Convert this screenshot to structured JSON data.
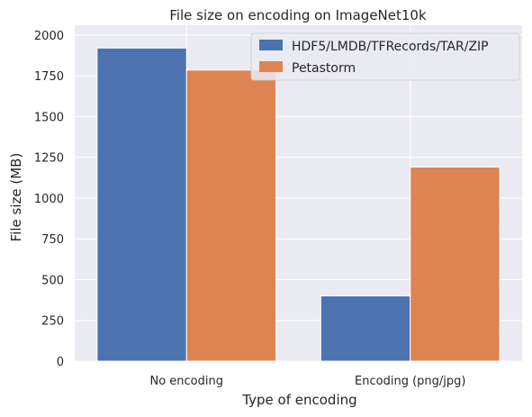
{
  "chart_data": {
    "type": "bar",
    "title": "File size on encoding on ImageNet10k",
    "xlabel": "Type of encoding",
    "ylabel": "File size (MB)",
    "categories": [
      "No encoding",
      "Encoding (png/jpg)"
    ],
    "series": [
      {
        "name": "HDF5/LMDB/TFRecords/TAR/ZIP",
        "values": [
          1920,
          400
        ],
        "color": "#4c72b0"
      },
      {
        "name": "Petastorm",
        "values": [
          1785,
          1190
        ],
        "color": "#dd8452"
      }
    ],
    "ylim": [
      0,
      2060
    ],
    "yticks": [
      0,
      250,
      500,
      750,
      1000,
      1250,
      1500,
      1750,
      2000
    ],
    "grid": true,
    "legend_position": "top-right",
    "background_color": "#eaeaf2",
    "grid_color": "#ffffff"
  }
}
